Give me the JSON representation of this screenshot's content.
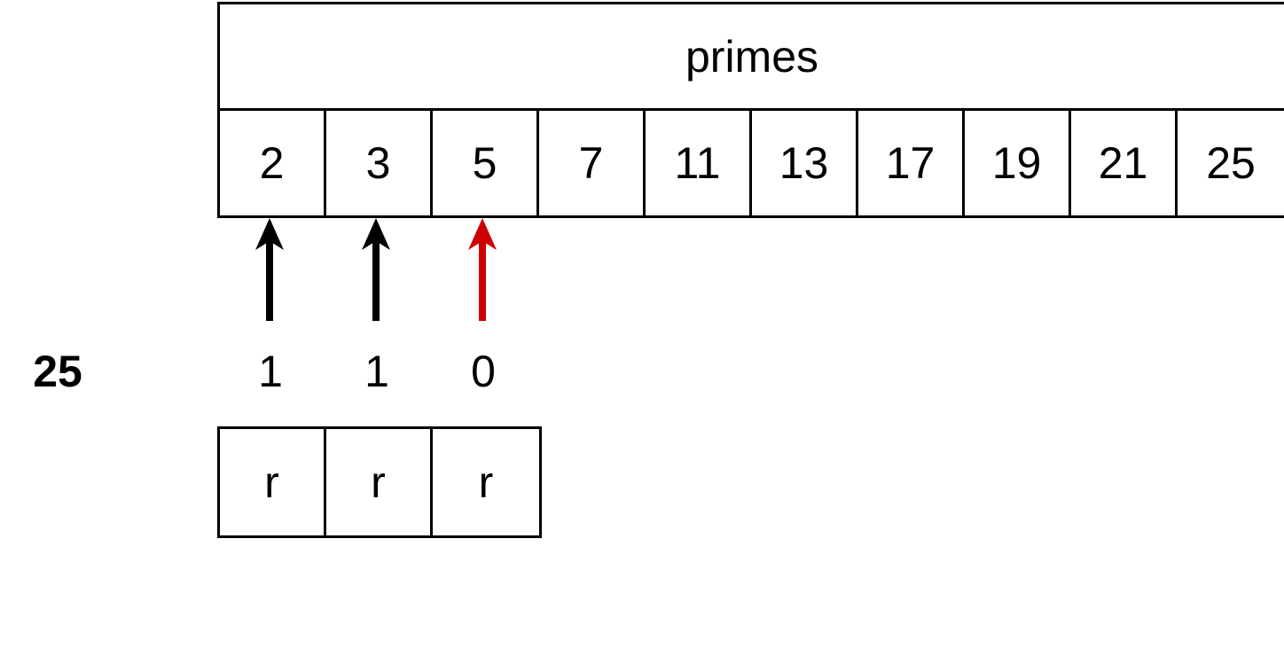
{
  "primes": {
    "title": "primes",
    "values": [
      "2",
      "3",
      "5",
      "7",
      "11",
      "13",
      "17",
      "19",
      "21",
      "25"
    ]
  },
  "target": "25",
  "flags": [
    "1",
    "1",
    "0"
  ],
  "r_cells": [
    "r",
    "r",
    "r"
  ],
  "arrows": [
    {
      "color": "#000000"
    },
    {
      "color": "#000000"
    },
    {
      "color": "#cc0000"
    }
  ]
}
